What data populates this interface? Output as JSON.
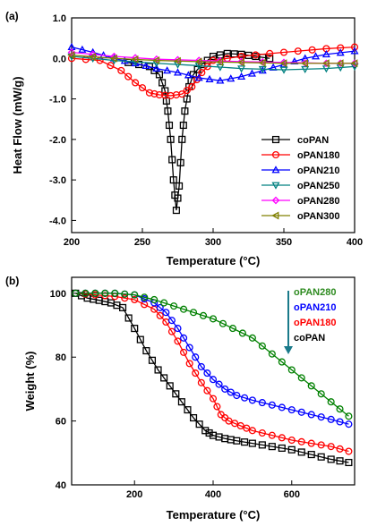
{
  "panels": [
    {
      "panel_label": "(a)",
      "xlabel": "Temperature (°C)",
      "ylabel": "Heat Flow (mW/g)",
      "xlim": [
        200,
        400
      ],
      "ylim": [
        -4.3,
        1.0
      ],
      "xticks": [
        "200",
        "250",
        "300",
        "350",
        "400"
      ],
      "yticks": [
        "1.0",
        "0.0",
        "-1.0",
        "-2.0",
        "-3.0",
        "-4.0"
      ],
      "legend_position": "bottom-right"
    },
    {
      "panel_label": "(b)",
      "xlabel": "Temperature (°C)",
      "ylabel": "Weight (%)",
      "xlim": [
        40,
        760
      ],
      "ylim": [
        40,
        105
      ],
      "xticks": [
        "200",
        "400",
        "600"
      ],
      "yticks": [
        "100",
        "80",
        "60",
        "40"
      ],
      "legend_position": "top-right"
    }
  ],
  "chart_data": [
    {
      "type": "line",
      "title": "",
      "xlabel": "Temperature (°C)",
      "ylabel": "Heat Flow (mW/g)",
      "xlim": [
        200,
        400
      ],
      "ylim": [
        -4.3,
        1.0
      ],
      "grid": false,
      "legend": "bottom-right",
      "series": [
        {
          "name": "coPAN",
          "color": "#000000",
          "marker": "square",
          "x": [
            240,
            255,
            262,
            266,
            268,
            270,
            272,
            274,
            276,
            278,
            280,
            283,
            286,
            292,
            300,
            310,
            320,
            330,
            340
          ],
          "y": [
            -0.1,
            -0.2,
            -0.4,
            -0.8,
            -1.3,
            -2.0,
            -3.0,
            -3.75,
            -3.15,
            -2.0,
            -1.3,
            -0.7,
            -0.4,
            -0.15,
            0.05,
            0.12,
            0.1,
            0.05,
            0.0
          ]
        },
        {
          "name": "oPAN180",
          "color": "#ff0000",
          "marker": "circle",
          "x": [
            200,
            220,
            235,
            245,
            255,
            262,
            270,
            278,
            285,
            292,
            300,
            320,
            340,
            360,
            380,
            400
          ],
          "y": [
            0.0,
            -0.05,
            -0.3,
            -0.6,
            -0.85,
            -0.9,
            -0.92,
            -0.88,
            -0.7,
            -0.35,
            -0.05,
            0.05,
            0.12,
            0.18,
            0.24,
            0.28
          ]
        },
        {
          "name": "oPAN210",
          "color": "#0000ff",
          "marker": "triangle-up",
          "x": [
            200,
            215,
            230,
            245,
            260,
            275,
            290,
            305,
            320,
            335,
            350,
            365,
            380,
            400
          ],
          "y": [
            0.28,
            0.15,
            0.0,
            -0.12,
            -0.25,
            -0.35,
            -0.48,
            -0.55,
            -0.45,
            -0.3,
            -0.15,
            0.0,
            0.1,
            0.18
          ]
        },
        {
          "name": "oPAN250",
          "color": "#008080",
          "marker": "triangle-down",
          "x": [
            200,
            230,
            260,
            290,
            320,
            350,
            380,
            400
          ],
          "y": [
            0.05,
            -0.05,
            -0.12,
            -0.18,
            -0.25,
            -0.28,
            -0.25,
            -0.2
          ]
        },
        {
          "name": "oPAN280",
          "color": "#ff00ff",
          "marker": "diamond",
          "x": [
            200,
            230,
            260,
            290,
            320,
            350,
            380,
            400
          ],
          "y": [
            0.15,
            0.05,
            -0.02,
            -0.05,
            -0.08,
            -0.1,
            -0.12,
            -0.12
          ]
        },
        {
          "name": "oPAN300",
          "color": "#808000",
          "marker": "triangle-left",
          "x": [
            200,
            230,
            260,
            290,
            320,
            350,
            380,
            400
          ],
          "y": [
            0.08,
            0.0,
            -0.05,
            -0.08,
            -0.1,
            -0.12,
            -0.12,
            -0.12
          ]
        }
      ]
    },
    {
      "type": "line",
      "title": "",
      "xlabel": "Temperature (°C)",
      "ylabel": "Weight (%)",
      "xlim": [
        40,
        760
      ],
      "ylim": [
        40,
        105
      ],
      "grid": false,
      "legend": "top-right",
      "series": [
        {
          "name": "coPAN",
          "color": "#000000",
          "marker": "square",
          "x": [
            50,
            80,
            110,
            140,
            170,
            200,
            230,
            260,
            290,
            320,
            350,
            380,
            400,
            430,
            460,
            500,
            550,
            600,
            650,
            700,
            745
          ],
          "y": [
            100,
            98.5,
            97.8,
            97,
            95.5,
            89,
            82,
            76,
            71,
            66,
            61,
            57,
            55.5,
            54.5,
            53.8,
            53,
            52,
            51,
            49.5,
            48,
            47
          ]
        },
        {
          "name": "oPAN180",
          "color": "#ff0000",
          "marker": "circle",
          "x": [
            50,
            100,
            150,
            200,
            250,
            280,
            310,
            340,
            370,
            400,
            420,
            440,
            470,
            500,
            550,
            600,
            650,
            700,
            745
          ],
          "y": [
            100,
            99.5,
            99,
            98,
            95,
            91,
            85,
            78,
            72,
            67,
            62,
            60,
            58.5,
            57,
            55.5,
            54,
            53,
            52,
            50.5
          ]
        },
        {
          "name": "oPAN210",
          "color": "#0000ff",
          "marker": "circle",
          "x": [
            50,
            100,
            150,
            200,
            250,
            280,
            310,
            340,
            370,
            400,
            430,
            460,
            500,
            550,
            600,
            650,
            700,
            745
          ],
          "y": [
            100,
            100,
            100,
            99.5,
            97,
            94,
            89,
            83,
            77,
            73,
            70,
            68,
            66.5,
            65,
            63.5,
            62,
            60.5,
            59
          ]
        },
        {
          "name": "oPAN280",
          "color": "#008000",
          "marker": "circle",
          "x": [
            50,
            100,
            150,
            200,
            250,
            300,
            350,
            400,
            450,
            500,
            550,
            600,
            650,
            700,
            745
          ],
          "y": [
            100,
            100,
            100,
            99.5,
            98,
            96,
            94,
            92,
            89,
            86,
            81,
            76,
            71,
            66,
            61.5
          ]
        }
      ],
      "annotations": {
        "legend_order": [
          "oPAN280",
          "oPAN210",
          "oPAN180",
          "coPAN"
        ],
        "legend_colors": [
          "#2e8b20",
          "#0000ff",
          "#ff0000",
          "#000000"
        ],
        "arrow_color": "#1a7a8a"
      }
    }
  ]
}
